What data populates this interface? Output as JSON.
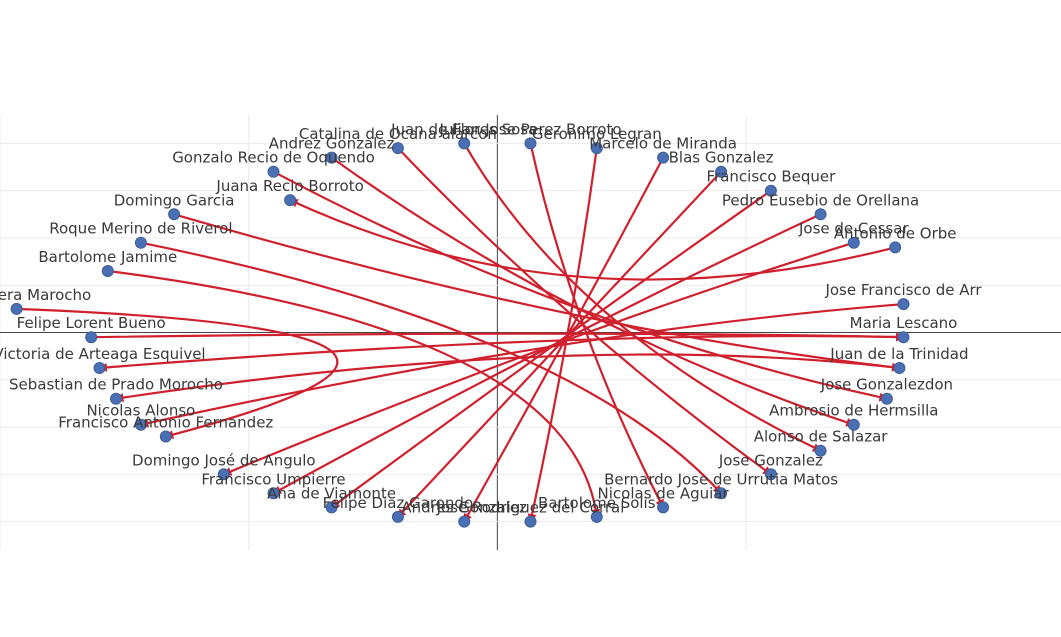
{
  "chart_data": {
    "type": "network-graph",
    "title": "",
    "xlabel": "",
    "ylabel": "",
    "grid": true,
    "legend": "none",
    "colors": {
      "node": "#4a6fb5",
      "edge": "#d0202e"
    },
    "xlim": [
      -6.0,
      6.8
    ],
    "ylim": [
      -4.6,
      4.6
    ],
    "xgrid": [
      -6,
      -3,
      0,
      3
    ],
    "ygrid": [
      4,
      3,
      2,
      1,
      0,
      -1,
      -2,
      -3,
      -4
    ],
    "nodes": [
      {
        "label": "Catalina de Ocana alarcon",
        "x": -1.2,
        "y": 3.9
      },
      {
        "label": "Juan de Flores Sosa",
        "x": -0.4,
        "y": 4.0
      },
      {
        "label": "Julian Jose Perez Borroto",
        "x": 0.4,
        "y": 4.0
      },
      {
        "label": "Geronimo Legran",
        "x": 1.2,
        "y": 3.9
      },
      {
        "label": "Marcelo de Miranda",
        "x": 2.0,
        "y": 3.7
      },
      {
        "label": "Andrez Gonzalez",
        "x": -2.0,
        "y": 3.7
      },
      {
        "label": "Gonzalo Recio de Oquendo",
        "x": -2.7,
        "y": 3.4
      },
      {
        "label": "Blas Gonzalez",
        "x": 2.7,
        "y": 3.4
      },
      {
        "label": "Francisco Bequer",
        "x": 3.3,
        "y": 3.0
      },
      {
        "label": "Juana Recio Borroto",
        "x": -2.5,
        "y": 2.8
      },
      {
        "label": "Domingo Garcia",
        "x": -3.9,
        "y": 2.5
      },
      {
        "label": "Pedro Eusebio de Orellana",
        "x": 3.9,
        "y": 2.5
      },
      {
        "label": "Roque Merino de Riverol",
        "x": -4.3,
        "y": 1.9
      },
      {
        "label": "Jose de Cessar",
        "x": 4.3,
        "y": 1.9
      },
      {
        "label": "Antonio de Orbe",
        "x": 4.8,
        "y": 1.8
      },
      {
        "label": "Bartolome Jamime",
        "x": -4.7,
        "y": 1.3
      },
      {
        "label": "de Herrera Marocho",
        "x": -5.8,
        "y": 0.5
      },
      {
        "label": "Jose Francisco de Arr",
        "x": 4.9,
        "y": 0.6
      },
      {
        "label": "Felipe Lorent Bueno",
        "x": -4.9,
        "y": -0.1
      },
      {
        "label": "Maria Lescano",
        "x": 4.9,
        "y": -0.1
      },
      {
        "label": "Victoria de Arteaga Esquivel",
        "x": -4.8,
        "y": -0.75
      },
      {
        "label": "Juan de la Trinidad",
        "x": 4.85,
        "y": -0.75
      },
      {
        "label": "Sebastian de Prado Morocho",
        "x": -4.6,
        "y": -1.4
      },
      {
        "label": "Jose Gonzalezdon",
        "x": 4.7,
        "y": -1.4
      },
      {
        "label": "Nicolas Alonso",
        "x": -4.3,
        "y": -1.95
      },
      {
        "label": "Francisco Antonio Fernandez",
        "x": -4.0,
        "y": -2.2
      },
      {
        "label": "Ambrosio de Hermsilla",
        "x": 4.3,
        "y": -1.95
      },
      {
        "label": "Alonso de Salazar",
        "x": 3.9,
        "y": -2.5
      },
      {
        "label": "Domingo José de Angulo",
        "x": -3.3,
        "y": -3.0
      },
      {
        "label": "Jose Gonzalez",
        "x": 3.3,
        "y": -3.0
      },
      {
        "label": "Francisco Umpierre",
        "x": -2.7,
        "y": -3.4
      },
      {
        "label": "Bernardo Jose de Urrutia Matos",
        "x": 2.7,
        "y": -3.4
      },
      {
        "label": "Ana de Viamonte",
        "x": -2.0,
        "y": -3.7
      },
      {
        "label": "Nicolas de Aguiar",
        "x": 2.0,
        "y": -3.7
      },
      {
        "label": "Felipe Diaz Garondo",
        "x": -1.2,
        "y": -3.9
      },
      {
        "label": "Andres Gonzalez",
        "x": -0.4,
        "y": -4.0
      },
      {
        "label": "Jose Rodriguez del Corral",
        "x": 0.4,
        "y": -4.0
      },
      {
        "label": "Bartolome Solis",
        "x": 1.2,
        "y": -3.9
      }
    ],
    "edges": [
      {
        "source": "Catalina de Ocana alarcon",
        "target": "Jose Gonzalez"
      },
      {
        "source": "Juan de Flores Sosa",
        "target": "Alonso de Salazar"
      },
      {
        "source": "Julian Jose Perez Borroto",
        "target": "Nicolas de Aguiar"
      },
      {
        "source": "Geronimo Legran",
        "target": "Jose Rodriguez del Corral"
      },
      {
        "source": "Marcelo de Miranda",
        "target": "Andres Gonzalez"
      },
      {
        "source": "Andrez Gonzalez",
        "target": "Ambrosio de Hermsilla"
      },
      {
        "source": "Gonzalo Recio de Oquendo",
        "target": "Jose Gonzalezdon"
      },
      {
        "source": "Blas Gonzalez",
        "target": "Felipe Diaz Garondo"
      },
      {
        "source": "Francisco Bequer",
        "target": "Ana de Viamonte"
      },
      {
        "source": "Antonio de Orbe",
        "target": "Juana Recio Borroto"
      },
      {
        "source": "Domingo Garcia",
        "target": "Juan de la Trinidad"
      },
      {
        "source": "Pedro Eusebio de Orellana",
        "target": "Francisco Umpierre"
      },
      {
        "source": "Roque Merino de Riverol",
        "target": "Bernardo Jose de Urrutia Matos"
      },
      {
        "source": "Jose de Cessar",
        "target": "Domingo José de Angulo"
      },
      {
        "source": "Bartolome Jamime",
        "target": "Bartolome Solis"
      },
      {
        "source": "de Herrera Marocho",
        "target": "Francisco Antonio Fernandez"
      },
      {
        "source": "Jose Francisco de Arr",
        "target": "Nicolas Alonso"
      },
      {
        "source": "Felipe Lorent Bueno",
        "target": "Maria Lescano"
      },
      {
        "source": "Maria Lescano",
        "target": "Victoria de Arteaga Esquivel"
      },
      {
        "source": "Juan de la Trinidad",
        "target": "Sebastian de Prado Morocho"
      }
    ]
  }
}
